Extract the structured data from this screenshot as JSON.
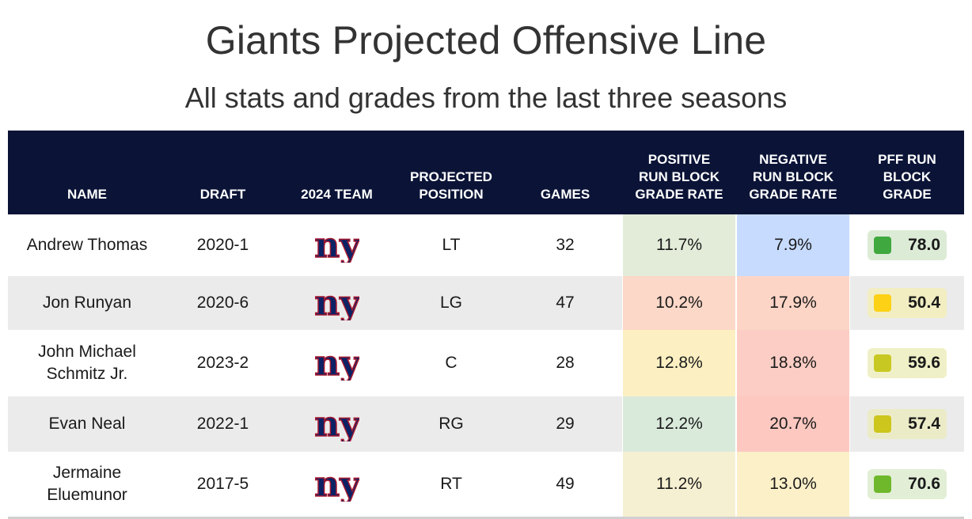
{
  "title": "Giants Projected Offensive Line",
  "subtitle": "All stats and grades from the last three seasons",
  "columns": {
    "name": "NAME",
    "draft": "DRAFT",
    "team": "2024 TEAM",
    "position": [
      "PROJECTED",
      "POSITION"
    ],
    "games": "GAMES",
    "positive": [
      "POSITIVE",
      "RUN BLOCK",
      "GRADE RATE"
    ],
    "negative": [
      "NEGATIVE",
      "RUN BLOCK",
      "GRADE RATE"
    ],
    "grade": [
      "PFF RUN",
      "BLOCK",
      "GRADE"
    ]
  },
  "team_logo": {
    "icon": "ny-giants-logo-icon",
    "text": "ny",
    "color": "#0b2265",
    "stroke": "#a71930"
  },
  "rows": [
    {
      "name": [
        "Andrew Thomas"
      ],
      "draft": "2020-1",
      "position": "LT",
      "games": "32",
      "positive": "11.7%",
      "positive_color": "#e3ecd9",
      "negative": "7.9%",
      "negative_color": "#c7dbff",
      "grade": "78.0",
      "grade_dot": "#3fa83f",
      "grade_bg": "#dcebd6"
    },
    {
      "name": [
        "Jon Runyan"
      ],
      "draft": "2020-6",
      "position": "LG",
      "games": "47",
      "positive": "10.2%",
      "positive_color": "#fcd8c8",
      "negative": "17.9%",
      "negative_color": "#fcd5c6",
      "grade": "50.4",
      "grade_dot": "#fcd116",
      "grade_bg": "#f2eec2"
    },
    {
      "name": [
        "John Michael",
        "Schmitz Jr."
      ],
      "draft": "2023-2",
      "position": "C",
      "games": "28",
      "positive": "12.8%",
      "positive_color": "#fcf0c2",
      "negative": "18.8%",
      "negative_color": "#fccdc4",
      "grade": "59.6",
      "grade_dot": "#c8c823",
      "grade_bg": "#f0f0c8"
    },
    {
      "name": [
        "Evan Neal"
      ],
      "draft": "2022-1",
      "position": "RG",
      "games": "29",
      "positive": "12.2%",
      "positive_color": "#d9eadb",
      "negative": "20.7%",
      "negative_color": "#fcc8c0",
      "grade": "57.4",
      "grade_dot": "#cdc61d",
      "grade_bg": "#ecebc8"
    },
    {
      "name": [
        "Jermaine",
        "Eluemunor"
      ],
      "draft": "2017-5",
      "position": "RT",
      "games": "49",
      "positive": "11.2%",
      "positive_color": "#f6f0d2",
      "negative": "13.0%",
      "negative_color": "#fcf0c8",
      "grade": "70.6",
      "grade_dot": "#6fb82c",
      "grade_bg": "#e2efd6"
    }
  ]
}
